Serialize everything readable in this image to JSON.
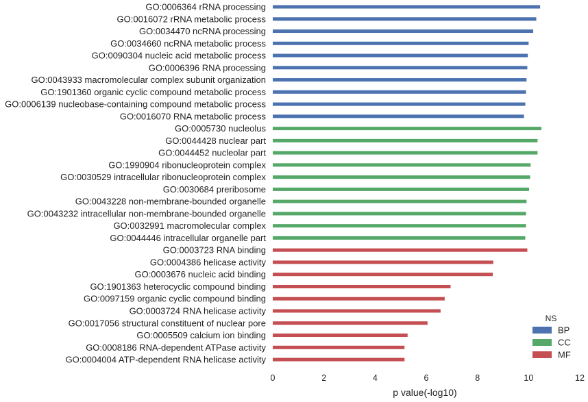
{
  "chart_data": {
    "type": "bar",
    "orientation": "horizontal",
    "xlabel": "p value(-log10)",
    "xlim": [
      0,
      12
    ],
    "xticks": [
      "0",
      "2",
      "4",
      "6",
      "8",
      "10",
      "12"
    ],
    "grid": false,
    "legend": {
      "title": "NS",
      "placement": "bottom-right",
      "entries": [
        {
          "name": "BP",
          "color": "#4c72b0"
        },
        {
          "name": "CC",
          "color": "#55a868"
        },
        {
          "name": "MF",
          "color": "#c44e52"
        }
      ]
    },
    "categories": [
      "GO:0006364 rRNA processing",
      "GO:0016072 rRNA metabolic process",
      "GO:0034470 ncRNA processing",
      "GO:0034660 ncRNA metabolic process",
      "GO:0090304 nucleic acid metabolic process",
      "GO:0006396 RNA processing",
      "GO:0043933 macromolecular complex subunit organization",
      "GO:1901360 organic cyclic compound metabolic process",
      "GO:0006139 nucleobase-containing compound metabolic process",
      "GO:0016070 RNA metabolic process",
      "GO:0005730 nucleolus",
      "GO:0044428 nuclear part",
      "GO:0044452 nucleolar part",
      "GO:1990904 ribonucleoprotein complex",
      "GO:0030529 intracellular ribonucleoprotein complex",
      "GO:0030684 preribosome",
      "GO:0043228 non-membrane-bounded organelle",
      "GO:0043232 intracellular non-membrane-bounded organelle",
      "GO:0032991 macromolecular complex",
      "GO:0044446 intracellular organelle part",
      "GO:0003723 RNA binding",
      "GO:0004386 helicase activity",
      "GO:0003676 nucleic acid binding",
      "GO:1901363 heterocyclic compound binding",
      "GO:0097159 organic cyclic compound binding",
      "GO:0003724 RNA helicase activity",
      "GO:0017056 structural constituent of nuclear pore",
      "GO:0005509 calcium ion binding",
      "GO:0008186 RNA-dependent ATPase activity",
      "GO:0004004 ATP-dependent RNA helicase activity"
    ],
    "ns": [
      "BP",
      "BP",
      "BP",
      "BP",
      "BP",
      "BP",
      "BP",
      "BP",
      "BP",
      "BP",
      "CC",
      "CC",
      "CC",
      "CC",
      "CC",
      "CC",
      "CC",
      "CC",
      "CC",
      "CC",
      "MF",
      "MF",
      "MF",
      "MF",
      "MF",
      "MF",
      "MF",
      "MF",
      "MF",
      "MF"
    ],
    "values": [
      10.45,
      10.3,
      10.18,
      10.0,
      9.97,
      9.95,
      9.92,
      9.9,
      9.87,
      9.82,
      10.5,
      10.35,
      10.35,
      10.08,
      10.06,
      10.02,
      9.92,
      9.9,
      9.9,
      9.87,
      9.95,
      8.62,
      8.6,
      6.95,
      6.72,
      6.56,
      6.05,
      5.27,
      5.15,
      5.15
    ]
  }
}
